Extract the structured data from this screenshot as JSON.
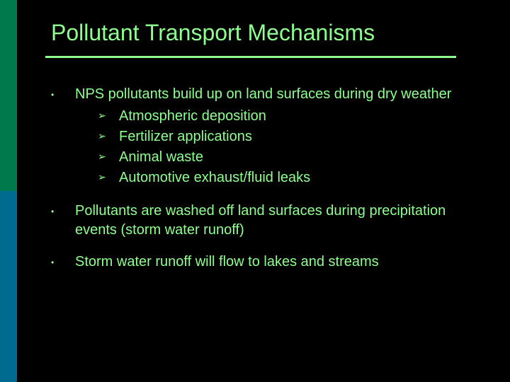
{
  "slide": {
    "title": "Pollutant Transport Mechanisms",
    "background_color": "#000000",
    "text_color": "#8eff8e",
    "sidebar_top_color": "#007a4d",
    "sidebar_bottom_color": "#006b8f",
    "title_fontsize": 32,
    "body_fontsize": 20,
    "bullets": [
      {
        "text": "NPS pollutants build up on land surfaces during dry weather",
        "sub": [
          "Atmospheric deposition",
          "Fertilizer applications",
          "Animal waste",
          "Automotive exhaust/fluid leaks"
        ]
      },
      {
        "text": "Pollutants are washed off land surfaces during precipitation events (storm water runoff)",
        "sub": []
      },
      {
        "text": "Storm water runoff will flow to lakes and streams",
        "sub": []
      }
    ]
  }
}
